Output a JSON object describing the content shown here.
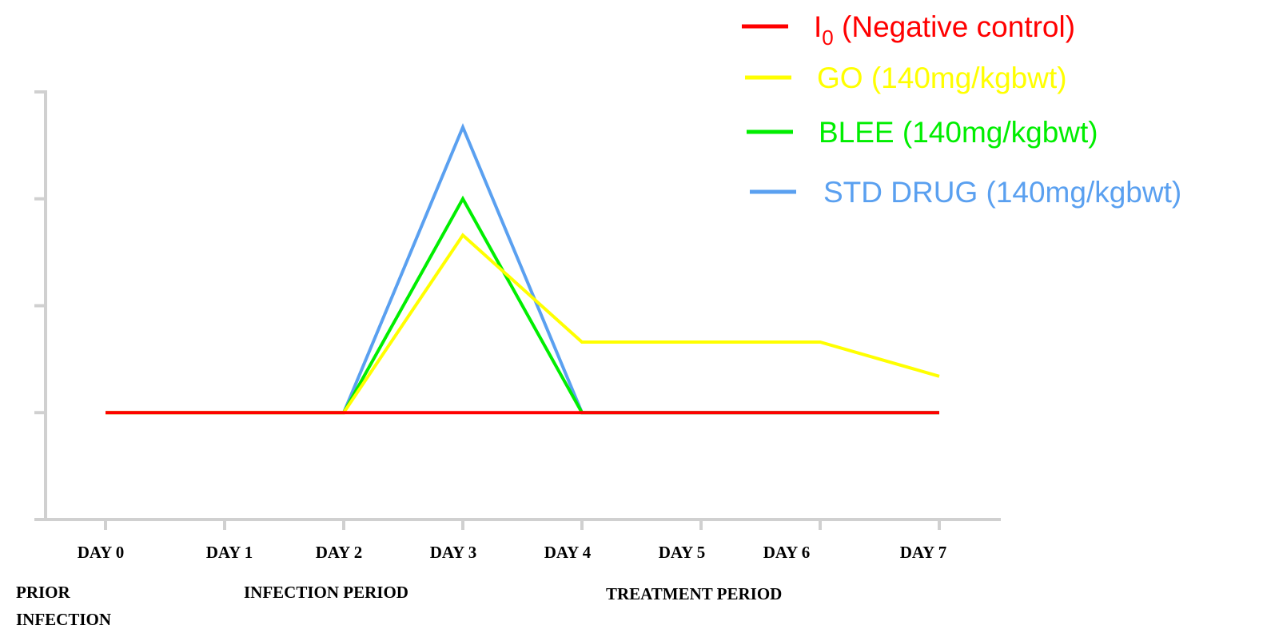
{
  "chart_data": {
    "type": "line",
    "categories": [
      "DAY 0",
      "DAY 1",
      "DAY 2",
      "DAY 3",
      "DAY 4",
      "DAY 5",
      "DAY 6",
      "DAY 7"
    ],
    "series": [
      {
        "name": "I0 (Negative control)",
        "color": "#ff0000",
        "values": [
          1,
          1,
          1,
          1,
          1,
          1,
          1,
          1
        ]
      },
      {
        "name": "GO (140mg/kgbwt)",
        "color": "#ffff00",
        "values": [
          1,
          1,
          1,
          2.66,
          1.66,
          1.66,
          1.66,
          1.34
        ]
      },
      {
        "name": "BLEE (140mg/kgbwt)",
        "color": "#00ee00",
        "values": [
          1,
          1,
          1,
          3,
          1,
          1,
          1,
          1
        ]
      },
      {
        "name": "STD DRUG (140mg/kgbwt)",
        "color": "#5aa0f0",
        "values": [
          1,
          1,
          1,
          3.67,
          1,
          1,
          1,
          1
        ]
      }
    ],
    "ylim": [
      0,
      4
    ],
    "yticks": [
      0,
      1,
      2,
      3,
      4
    ],
    "annotations": [
      "PRIOR",
      "INFECTION",
      "INFECTION PERIOD",
      "TREATMENT PERIOD"
    ]
  }
}
